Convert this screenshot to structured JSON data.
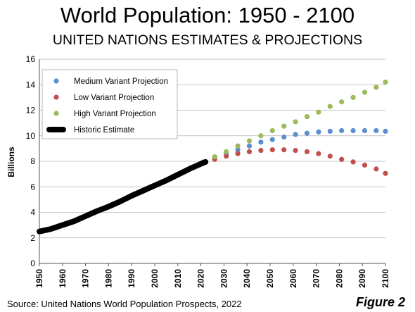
{
  "figure_label": "Figure 2",
  "source": "Source: United Nations World Population Prospects, 2022",
  "chart_data": {
    "type": "scatter",
    "title": "World Population: 1950 - 2100",
    "subtitle": "UNITED NATIONS ESTIMATES & PROJECTIONS",
    "xlabel": "",
    "ylabel": "Billions",
    "xlim": [
      1950,
      2100
    ],
    "ylim": [
      0,
      16
    ],
    "x_ticks": [
      1950,
      1960,
      1970,
      1980,
      1990,
      2000,
      2010,
      2020,
      2030,
      2040,
      2050,
      2060,
      2070,
      2080,
      2090,
      2100
    ],
    "y_ticks": [
      0,
      2,
      4,
      6,
      8,
      10,
      12,
      14,
      16
    ],
    "grid": "horizontal",
    "legend_position": "top-left",
    "series": [
      {
        "name": "Medium Variant Projection",
        "color": "#5b8fcf",
        "style": "dots",
        "x": [
          2021,
          2026,
          2031,
          2036,
          2041,
          2046,
          2051,
          2056,
          2061,
          2066,
          2071,
          2076,
          2081,
          2086,
          2091,
          2096,
          2100
        ],
        "y": [
          7.9,
          8.3,
          8.6,
          8.9,
          9.2,
          9.5,
          9.7,
          9.9,
          10.1,
          10.2,
          10.3,
          10.35,
          10.4,
          10.4,
          10.4,
          10.4,
          10.35
        ]
      },
      {
        "name": "Low Variant Projection",
        "color": "#c0504d",
        "style": "dots",
        "x": [
          2021,
          2026,
          2031,
          2036,
          2041,
          2046,
          2051,
          2056,
          2061,
          2066,
          2071,
          2076,
          2081,
          2086,
          2091,
          2096,
          2100
        ],
        "y": [
          7.9,
          8.15,
          8.4,
          8.6,
          8.75,
          8.85,
          8.9,
          8.9,
          8.85,
          8.75,
          8.6,
          8.4,
          8.15,
          7.95,
          7.7,
          7.4,
          7.05
        ]
      },
      {
        "name": "High Variant Projection",
        "color": "#9bbb59",
        "style": "dots",
        "x": [
          2021,
          2026,
          2031,
          2036,
          2041,
          2046,
          2051,
          2056,
          2061,
          2066,
          2071,
          2076,
          2081,
          2086,
          2091,
          2096,
          2100
        ],
        "y": [
          7.95,
          8.35,
          8.75,
          9.2,
          9.6,
          10.0,
          10.4,
          10.75,
          11.1,
          11.5,
          11.85,
          12.3,
          12.65,
          13.0,
          13.4,
          13.8,
          14.2
        ]
      },
      {
        "name": "Historic Estimate",
        "color": "#000000",
        "style": "thick-line",
        "x": [
          1950,
          1955,
          1960,
          1965,
          1970,
          1975,
          1980,
          1985,
          1990,
          1995,
          2000,
          2005,
          2010,
          2015,
          2020,
          2022
        ],
        "y": [
          2.5,
          2.7,
          3.0,
          3.3,
          3.7,
          4.1,
          4.45,
          4.85,
          5.3,
          5.7,
          6.1,
          6.5,
          6.95,
          7.4,
          7.8,
          7.95
        ]
      }
    ]
  }
}
